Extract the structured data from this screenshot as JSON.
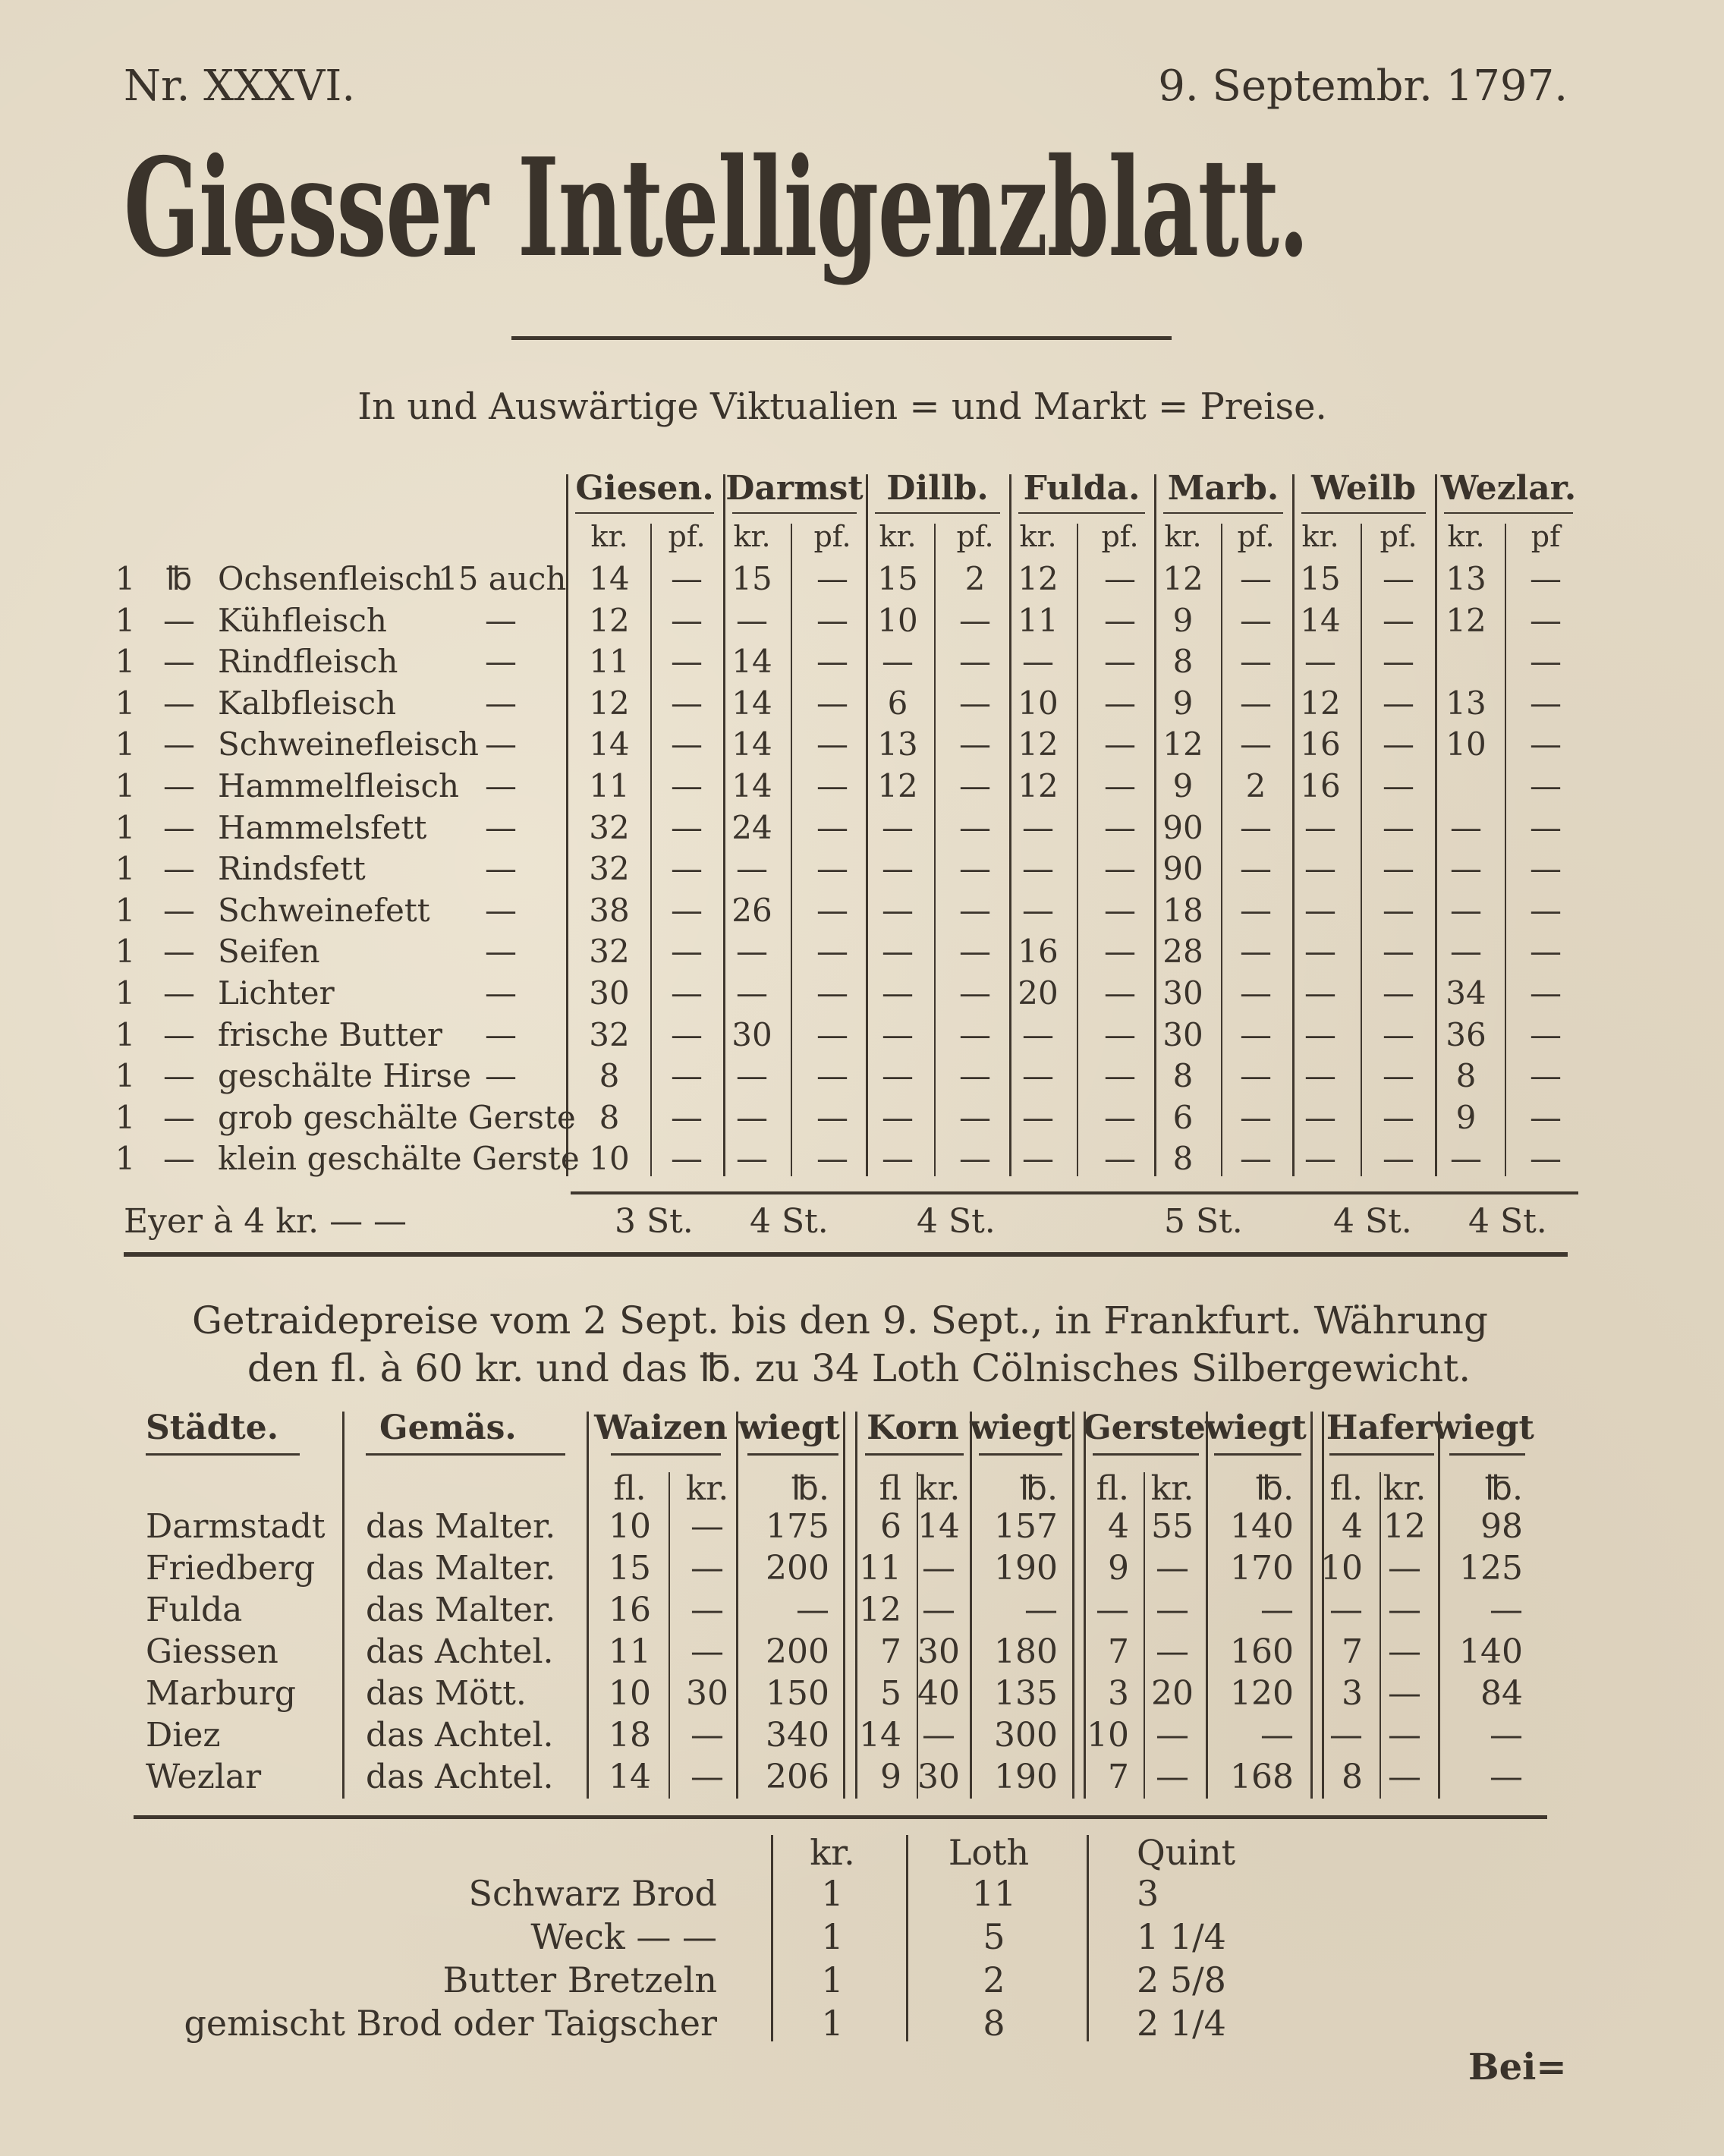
{
  "header": {
    "issue": "Nr. XXXVI.",
    "date": "9. Septembr. 1797.",
    "title": "Giesser Intelligenzblatt."
  },
  "market": {
    "title": "In und Auswärtige Viktualien = und Markt = Preise.",
    "towns": [
      "Giesen.",
      "Darmst",
      "Dillb.",
      "Fulda.",
      "Marb.",
      "Weilb",
      "Wezlar."
    ],
    "subheaders": [
      "kr.",
      "pf.",
      "kr.",
      "pf.",
      "kr.",
      "pf.",
      "kr.",
      "pf.",
      "kr.",
      "pf.",
      "kr.",
      "pf.",
      "kr.",
      "pf"
    ],
    "rows": [
      {
        "qty": "1",
        "unit": "℔",
        "name": "Ochsenfleisch",
        "note": "15 auch",
        "values": [
          "14",
          "—",
          "15",
          "—",
          "15",
          "2",
          "12",
          "—",
          "12",
          "—",
          "15",
          "—",
          "13",
          "—"
        ]
      },
      {
        "qty": "1",
        "unit": "—",
        "name": "Kühfleisch",
        "note": "—",
        "values": [
          "12",
          "—",
          "—",
          "—",
          "10",
          "—",
          "11",
          "—",
          "9",
          "—",
          "14",
          "—",
          "12",
          "—"
        ]
      },
      {
        "qty": "1",
        "unit": "—",
        "name": "Rindfleisch",
        "note": "—",
        "values": [
          "11",
          "—",
          "14",
          "—",
          "—",
          "—",
          "—",
          "—",
          "8",
          "—",
          "—",
          "—",
          "",
          "—"
        ]
      },
      {
        "qty": "1",
        "unit": "—",
        "name": "Kalbfleisch",
        "note": "—",
        "values": [
          "12",
          "—",
          "14",
          "—",
          "6",
          "—",
          "10",
          "—",
          "9",
          "—",
          "12",
          "—",
          "13",
          "—"
        ]
      },
      {
        "qty": "1",
        "unit": "—",
        "name": "Schweinefleisch",
        "note": "—",
        "values": [
          "14",
          "—",
          "14",
          "—",
          "13",
          "—",
          "12",
          "—",
          "12",
          "—",
          "16",
          "—",
          "10",
          "—"
        ]
      },
      {
        "qty": "1",
        "unit": "—",
        "name": "Hammelfleisch",
        "note": "—",
        "values": [
          "11",
          "—",
          "14",
          "—",
          "12",
          "—",
          "12",
          "—",
          "9",
          "2",
          "16",
          "—",
          "",
          "—"
        ]
      },
      {
        "qty": "1",
        "unit": "—",
        "name": "Hammelsfett",
        "note": "—",
        "values": [
          "32",
          "—",
          "24",
          "—",
          "—",
          "—",
          "—",
          "—",
          "90",
          "—",
          "—",
          "—",
          "—",
          "—"
        ]
      },
      {
        "qty": "1",
        "unit": "—",
        "name": "Rindsfett",
        "note": "—",
        "values": [
          "32",
          "—",
          "—",
          "—",
          "—",
          "—",
          "—",
          "—",
          "90",
          "—",
          "—",
          "—",
          "—",
          "—"
        ]
      },
      {
        "qty": "1",
        "unit": "—",
        "name": "Schweinefett",
        "note": "—",
        "values": [
          "38",
          "—",
          "26",
          "—",
          "—",
          "—",
          "—",
          "—",
          "18",
          "—",
          "—",
          "—",
          "—",
          "—"
        ]
      },
      {
        "qty": "1",
        "unit": "—",
        "name": "Seifen",
        "note": "—",
        "values": [
          "32",
          "—",
          "—",
          "—",
          "—",
          "—",
          "16",
          "—",
          "28",
          "—",
          "—",
          "—",
          "—",
          "—"
        ]
      },
      {
        "qty": "1",
        "unit": "—",
        "name": "Lichter",
        "note": "—",
        "values": [
          "30",
          "—",
          "—",
          "—",
          "—",
          "—",
          "20",
          "—",
          "30",
          "—",
          "—",
          "—",
          "34",
          "—"
        ]
      },
      {
        "qty": "1",
        "unit": "—",
        "name": "frische Butter",
        "note": "—",
        "values": [
          "32",
          "—",
          "30",
          "—",
          "—",
          "—",
          "—",
          "—",
          "30",
          "—",
          "—",
          "—",
          "36",
          "—"
        ]
      },
      {
        "qty": "1",
        "unit": "—",
        "name": "geschälte Hirse",
        "note": "—",
        "values": [
          "8",
          "—",
          "—",
          "—",
          "—",
          "—",
          "—",
          "—",
          "8",
          "—",
          "—",
          "—",
          "8",
          "—"
        ]
      },
      {
        "qty": "1",
        "unit": "—",
        "name": "grob geschälte Gerste",
        "note": "",
        "values": [
          "8",
          "—",
          "—",
          "—",
          "—",
          "—",
          "—",
          "—",
          "6",
          "—",
          "—",
          "—",
          "9",
          "—"
        ]
      },
      {
        "qty": "1",
        "unit": "—",
        "name": "klein geschälte Gerste",
        "note": "",
        "values": [
          "10",
          "—",
          "—",
          "—",
          "—",
          "—",
          "—",
          "—",
          "8",
          "—",
          "—",
          "—",
          "—",
          "—"
        ]
      }
    ],
    "eggs": {
      "label": "Eyer à 4 kr. — —",
      "values": [
        "3 St.",
        "4 St.",
        "4 St.",
        "",
        "5 St.",
        "4 St.",
        "4 St."
      ]
    }
  },
  "grain": {
    "heading_line1": "Getraidepreise vom 2 Sept. bis den 9. Sept., in Frankfurt. Währung",
    "heading_line2": "den fl. à 60 kr. und das ℔. zu 34 Loth Cölnisches Silbergewicht.",
    "headers": [
      "Städte.",
      "Gemäs.",
      "Waizen",
      "wiegt",
      "Korn",
      "wiegt",
      "Gerste",
      "wiegt",
      "Hafer",
      "wiegt"
    ],
    "subheaders": [
      "fl.",
      "kr.",
      "℔.",
      "fl",
      "kr.",
      "℔.",
      "fl.",
      "kr.",
      "℔.",
      "fl.",
      "kr.",
      "℔."
    ],
    "rows": [
      {
        "city": "Darmstadt",
        "measure": "das Malter.",
        "values": [
          "10",
          "—",
          "175",
          "6",
          "14",
          "157",
          "4",
          "55",
          "140",
          "4",
          "12",
          "98"
        ]
      },
      {
        "city": "Friedberg",
        "measure": "das Malter.",
        "values": [
          "15",
          "—",
          "200",
          "11",
          "—",
          "190",
          "9",
          "—",
          "170",
          "10",
          "—",
          "125"
        ]
      },
      {
        "city": "Fulda",
        "measure": "das Malter.",
        "values": [
          "16",
          "—",
          "—",
          "12",
          "—",
          "—",
          "—",
          "—",
          "—",
          "—",
          "—",
          "—"
        ]
      },
      {
        "city": "Giessen",
        "measure": "das Achtel.",
        "values": [
          "11",
          "—",
          "200",
          "7",
          "30",
          "180",
          "7",
          "—",
          "160",
          "7",
          "—",
          "140"
        ]
      },
      {
        "city": "Marburg",
        "measure": "das Mött.",
        "values": [
          "10",
          "30",
          "150",
          "5",
          "40",
          "135",
          "3",
          "20",
          "120",
          "3",
          "—",
          "84"
        ]
      },
      {
        "city": "Diez",
        "measure": "das Achtel.",
        "values": [
          "18",
          "—",
          "340",
          "14",
          "—",
          "300",
          "10",
          "—",
          "—",
          "—",
          "—",
          "—"
        ]
      },
      {
        "city": "Wezlar",
        "measure": "das Achtel.",
        "values": [
          "14",
          "—",
          "206",
          "9",
          "30",
          "190",
          "7",
          "—",
          "168",
          "8",
          "—",
          "—"
        ]
      }
    ]
  },
  "bread": {
    "headers": [
      "kr.",
      "Loth",
      "Quint"
    ],
    "rows": [
      {
        "name": "Schwarz Brod",
        "kr": "1",
        "loth": "11",
        "quint": "3"
      },
      {
        "name": "Weck — —",
        "kr": "1",
        "loth": "5",
        "quint": "1 1/4"
      },
      {
        "name": "Butter Bretzeln",
        "kr": "1",
        "loth": "2",
        "quint": "2 5/8"
      },
      {
        "name": "gemischt Brod oder Taigscher",
        "kr": "1",
        "loth": "8",
        "quint": "2 1/4"
      }
    ]
  },
  "catchword": "Bei="
}
